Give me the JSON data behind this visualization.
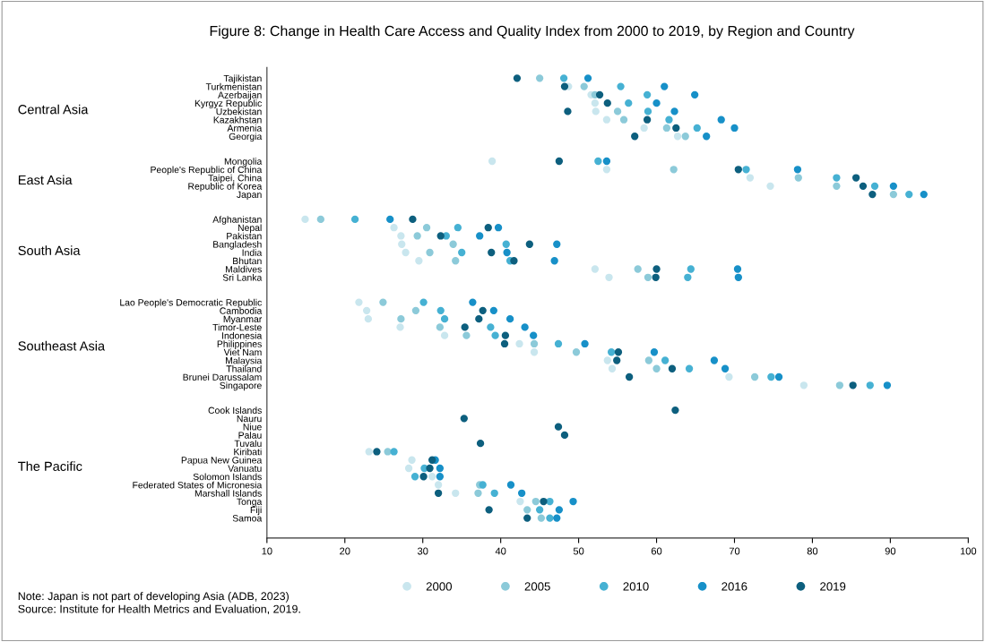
{
  "chart_data": {
    "type": "scatter",
    "title": "Figure 8: Change in Health Care Access and Quality Index from 2000 to 2019, by Region and Country",
    "orientation": "horizontal",
    "categories": [
      "Tajikistan",
      "Turkmenistan",
      "Azerbaijan",
      "Kyrgyz Republic",
      "Uzbekistan",
      "Kazakhstan",
      "Armenia",
      "Georgia",
      null,
      null,
      "Mongolia",
      "People's Republic of China",
      "Taipei, China",
      "Republic of Korea",
      "Japan",
      null,
      null,
      "Afghanistan",
      "Nepal",
      "Pakistan",
      "Bangladesh",
      "India",
      "Bhutan",
      "Maldives",
      "Sri Lanka",
      null,
      null,
      "Lao People's Democratic Republic",
      "Cambodia",
      "Myanmar",
      "Timor-Leste",
      "Indonesia",
      "Philippines",
      "Viet Nam",
      "Malaysia",
      "Thailand",
      "Brunei Darussalam",
      "Singapore",
      null,
      null,
      "Cook Islands",
      "Nauru",
      "Niue",
      "Palau",
      "Tuvalu",
      "Kiribati",
      "Papua New Guinea",
      "Vanuatu",
      "Solomon Islands",
      "Federated States of Micronesia",
      "Marshall Islands",
      "Tonga",
      "Fiji",
      "Samoa"
    ],
    "series": [
      {
        "name": "2000",
        "color": "#c9e6ee",
        "values": [
          null,
          48.7,
          51.6,
          52.1,
          52.2,
          53.6,
          58.4,
          62.7,
          null,
          null,
          38.9,
          53.6,
          72.0,
          74.6,
          null,
          null,
          null,
          14.9,
          26.3,
          27.2,
          27.3,
          27.8,
          29.5,
          52.1,
          53.9,
          null,
          null,
          21.8,
          22.8,
          23.0,
          27.1,
          32.8,
          42.4,
          44.3,
          53.7,
          54.3,
          69.3,
          78.9,
          null,
          null,
          null,
          null,
          null,
          null,
          null,
          23.1,
          28.6,
          28.2,
          31.2,
          32.0,
          34.2,
          42.5,
          null,
          null
        ]
      },
      {
        "name": "2005",
        "color": "#8ccad9",
        "values": [
          45.0,
          50.7,
          52.1,
          null,
          55.0,
          55.8,
          61.3,
          63.7,
          null,
          null,
          null,
          62.2,
          78.2,
          83.1,
          90.4,
          null,
          null,
          16.9,
          30.5,
          29.3,
          33.9,
          30.9,
          34.2,
          57.6,
          58.9,
          null,
          null,
          24.9,
          29.1,
          27.2,
          32.2,
          35.6,
          44.3,
          49.7,
          59.0,
          60.0,
          72.6,
          83.5,
          null,
          null,
          null,
          null,
          null,
          null,
          null,
          25.5,
          null,
          null,
          null,
          37.3,
          37.1,
          44.5,
          43.4,
          45.2
        ]
      },
      {
        "name": "2010",
        "color": "#46b1d3",
        "values": [
          48.1,
          55.4,
          58.8,
          56.4,
          58.9,
          61.6,
          65.2,
          null,
          null,
          null,
          52.5,
          71.5,
          83.1,
          88.0,
          92.4,
          null,
          null,
          21.3,
          34.5,
          33.0,
          40.7,
          35.0,
          41.2,
          64.4,
          64.0,
          null,
          null,
          30.1,
          32.3,
          32.8,
          38.7,
          39.3,
          47.4,
          54.2,
          61.1,
          64.2,
          74.7,
          87.4,
          null,
          null,
          null,
          null,
          null,
          null,
          null,
          26.3,
          null,
          30.2,
          29.0,
          37.7,
          39.2,
          46.3,
          45.0,
          46.3
        ]
      },
      {
        "name": "2016",
        "color": "#1790c8",
        "values": [
          51.2,
          61.0,
          64.9,
          60.0,
          62.3,
          68.3,
          70.0,
          66.4,
          null,
          null,
          53.6,
          78.1,
          null,
          90.4,
          94.3,
          null,
          null,
          25.8,
          39.7,
          37.3,
          47.2,
          40.8,
          46.9,
          70.4,
          70.5,
          null,
          null,
          36.4,
          39.1,
          41.2,
          43.1,
          44.2,
          50.8,
          59.7,
          67.4,
          68.8,
          75.7,
          89.6,
          null,
          null,
          null,
          null,
          null,
          null,
          null,
          null,
          31.6,
          32.2,
          32.2,
          41.3,
          42.7,
          49.3,
          47.5,
          47.2
        ]
      },
      {
        "name": "2019",
        "color": "#0d5f7e",
        "values": [
          42.1,
          48.2,
          52.7,
          53.7,
          48.6,
          58.8,
          62.5,
          57.2,
          null,
          null,
          47.5,
          70.5,
          85.6,
          86.5,
          87.7,
          null,
          null,
          28.7,
          38.4,
          32.3,
          43.7,
          38.8,
          41.7,
          60.0,
          59.9,
          null,
          null,
          null,
          37.7,
          37.2,
          35.4,
          40.6,
          40.5,
          55.1,
          54.9,
          62.0,
          56.5,
          85.2,
          null,
          null,
          62.4,
          35.3,
          47.4,
          48.2,
          37.4,
          24.1,
          31.2,
          30.9,
          30.1,
          null,
          32.0,
          45.5,
          38.5,
          43.4
        ]
      }
    ],
    "xlim": [
      10,
      100
    ],
    "xticks": [
      10,
      20,
      30,
      40,
      50,
      60,
      70,
      80,
      90,
      100
    ],
    "marker": "circle",
    "legend": "bottom",
    "annotations": [
      "Central Asia",
      "East Asia",
      "South Asia",
      "Southeast Asia",
      "The Pacific",
      "Note: Japan is not part of developing Asia (ADB, 2023)",
      "Source: Institute for Health Metrics and Evaluation, 2019."
    ]
  }
}
